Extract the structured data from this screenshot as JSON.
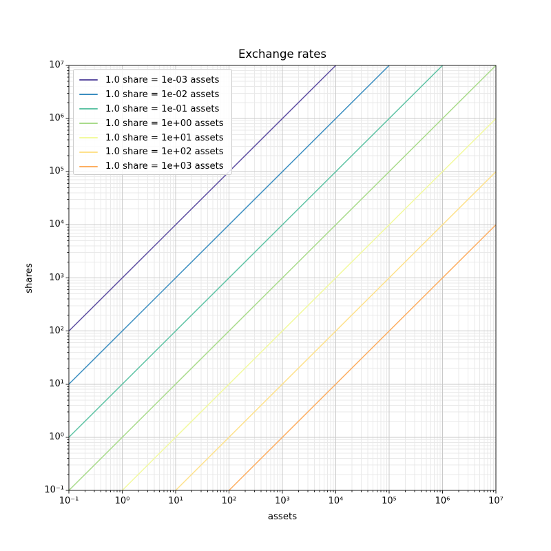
{
  "chart_data": {
    "type": "line",
    "title": "Exchange rates",
    "xlabel": "assets",
    "ylabel": "shares",
    "xscale": "log",
    "yscale": "log",
    "xlim": [
      0.1,
      10000000
    ],
    "ylim": [
      0.1,
      10000000
    ],
    "grid": {
      "which": "both",
      "major_color": "#c9c9c9",
      "minor_color": "#e9e9e9"
    },
    "axes": {
      "spine_color": "#1a1a1a",
      "tick_color": "#1a1a1a"
    },
    "x_ticks": {
      "values": [
        0.1,
        1,
        10,
        100,
        1000,
        10000,
        100000,
        1000000,
        10000000
      ],
      "labels": [
        "10⁻¹",
        "10⁰",
        "10¹",
        "10²",
        "10³",
        "10⁴",
        "10⁵",
        "10⁶",
        "10⁷"
      ]
    },
    "y_ticks": {
      "values": [
        0.1,
        1,
        10,
        100,
        1000,
        10000,
        100000,
        1000000,
        10000000
      ],
      "labels": [
        "10⁻¹",
        "10⁰",
        "10¹",
        "10²",
        "10³",
        "10⁴",
        "10⁵",
        "10⁶",
        "10⁷"
      ]
    },
    "legend": {
      "location": "upper left"
    },
    "series": [
      {
        "label": "1.0 share = 1e-03 assets",
        "assets_per_share": 0.001,
        "color": "#5e4fa2",
        "points": [
          [
            0.1,
            100
          ],
          [
            10000,
            10000000
          ]
        ]
      },
      {
        "label": "1.0 share = 1e-02 assets",
        "assets_per_share": 0.01,
        "color": "#3b8ec0",
        "points": [
          [
            0.1,
            10
          ],
          [
            100000,
            10000000
          ]
        ]
      },
      {
        "label": "1.0 share = 1e-01 assets",
        "assets_per_share": 0.1,
        "color": "#5ec3a4",
        "points": [
          [
            0.1,
            1
          ],
          [
            1000000,
            10000000
          ]
        ]
      },
      {
        "label": "1.0 share = 1e+00 assets",
        "assets_per_share": 1,
        "color": "#a9db8b",
        "points": [
          [
            0.1,
            0.1
          ],
          [
            10000000,
            10000000
          ]
        ]
      },
      {
        "label": "1.0 share = 1e+01 assets",
        "assets_per_share": 10,
        "color": "#f2fa9e",
        "points": [
          [
            1,
            0.1
          ],
          [
            10000000,
            1000000
          ]
        ]
      },
      {
        "label": "1.0 share = 1e+02 assets",
        "assets_per_share": 100,
        "color": "#fee18b",
        "points": [
          [
            10,
            0.1
          ],
          [
            10000000,
            100000
          ]
        ]
      },
      {
        "label": "1.0 share = 1e+03 assets",
        "assets_per_share": 1000,
        "color": "#fdae61",
        "points": [
          [
            100,
            0.1
          ],
          [
            10000000,
            10000
          ]
        ]
      }
    ]
  }
}
